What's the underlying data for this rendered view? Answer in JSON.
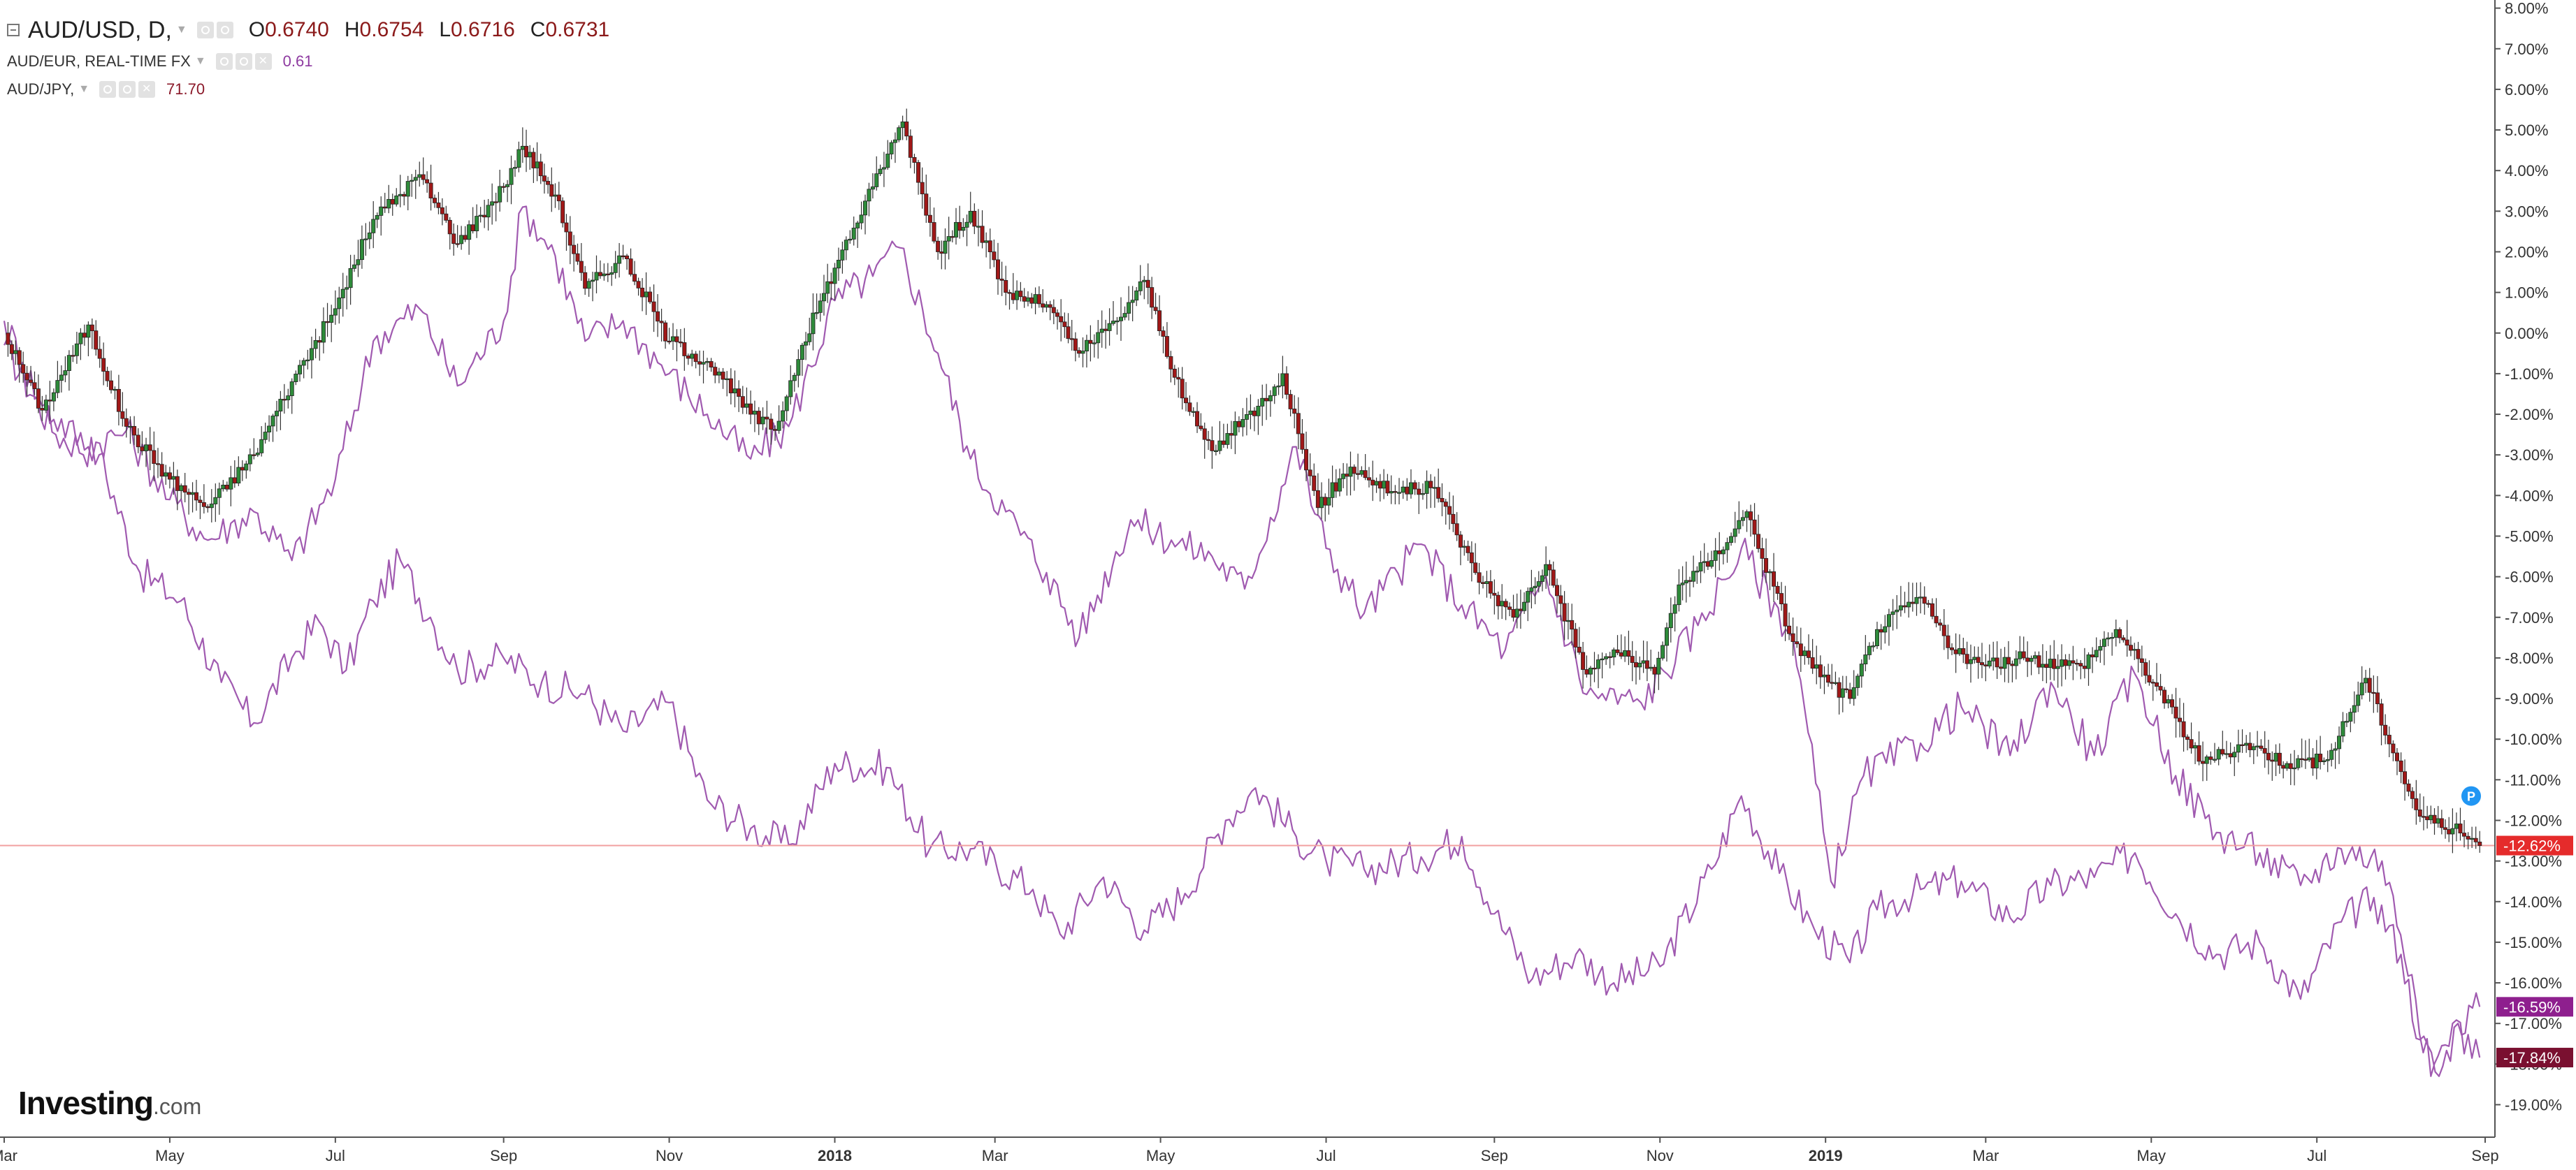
{
  "legend": {
    "main": {
      "symbol": "AUD/USD, D,",
      "open_label": "O",
      "open": "0.6740",
      "high_label": "H",
      "high": "0.6754",
      "low_label": "L",
      "low": "0.6716",
      "close_label": "C",
      "close": "0.6731"
    },
    "overlays": [
      {
        "symbol": "AUD/EUR, REAL-TIME FX",
        "value": "0.61",
        "color": "#8e3aa0"
      },
      {
        "symbol": "AUD/JPY,",
        "value": "71.70",
        "color": "#8b1a2a"
      }
    ]
  },
  "logo": {
    "brand": "Investing",
    "suffix": ".com"
  },
  "price_badges": [
    {
      "label": "-12.62%",
      "value": -12.62,
      "color": "#e52b2b"
    },
    {
      "label": "-16.59%",
      "value": -16.59,
      "color": "#8e1f8e"
    },
    {
      "label": "-17.84%",
      "value": -17.84,
      "color": "#7a1030"
    }
  ],
  "marker": {
    "label": "P",
    "color": "#2196f3"
  },
  "colors": {
    "up": "#2e8b3a",
    "down": "#a01818",
    "wick": "#333333",
    "aud_eur": "#a05ab0",
    "aud_jpy": "#a05ab0",
    "grid": "#eeeeee",
    "hline": "#f2a0a0"
  },
  "chart_data": {
    "type": "line",
    "title": "AUD/USD, D,",
    "y_axis": {
      "unit": "%",
      "side": "right",
      "min": -19.8,
      "max": 8.2,
      "ticks": [
        8,
        7,
        6,
        5,
        4,
        3,
        2,
        1,
        0,
        -1,
        -2,
        -3,
        -4,
        -5,
        -6,
        -7,
        -8,
        -9,
        -10,
        -11,
        -12,
        -13,
        -14,
        -15,
        -16,
        -17,
        -18,
        -19
      ],
      "tick_labels": [
        "8.00%",
        "7.00%",
        "6.00%",
        "5.00%",
        "4.00%",
        "3.00%",
        "2.00%",
        "1.00%",
        "0.00%",
        "-1.00%",
        "-2.00%",
        "-3.00%",
        "-4.00%",
        "-5.00%",
        "-6.00%",
        "-7.00%",
        "-8.00%",
        "-9.00%",
        "-10.00%",
        "-11.00%",
        "-12.00%",
        "-13.00%",
        "-14.00%",
        "-15.00%",
        "-16.00%",
        "-17.00%",
        "-18.00%",
        "-19.00%"
      ]
    },
    "x_axis": {
      "start": "2017-03-01",
      "end": "2019-09-01",
      "ticks": [
        {
          "date": "2017-03-01",
          "label": "Mar",
          "bold": false
        },
        {
          "date": "2017-05-01",
          "label": "May",
          "bold": false
        },
        {
          "date": "2017-07-01",
          "label": "Jul",
          "bold": false
        },
        {
          "date": "2017-09-01",
          "label": "Sep",
          "bold": false
        },
        {
          "date": "2017-11-01",
          "label": "Nov",
          "bold": false
        },
        {
          "date": "2018-01-01",
          "label": "2018",
          "bold": true
        },
        {
          "date": "2018-03-01",
          "label": "Mar",
          "bold": false
        },
        {
          "date": "2018-05-01",
          "label": "May",
          "bold": false
        },
        {
          "date": "2018-07-01",
          "label": "Jul",
          "bold": false
        },
        {
          "date": "2018-09-01",
          "label": "Sep",
          "bold": false
        },
        {
          "date": "2018-11-01",
          "label": "Nov",
          "bold": false
        },
        {
          "date": "2019-01-01",
          "label": "2019",
          "bold": true
        },
        {
          "date": "2019-03-01",
          "label": "Mar",
          "bold": false
        },
        {
          "date": "2019-05-01",
          "label": "May",
          "bold": false
        },
        {
          "date": "2019-07-01",
          "label": "Jul",
          "bold": false
        },
        {
          "date": "2019-09-01",
          "label": "Sep",
          "bold": false
        }
      ]
    },
    "series": [
      {
        "name": "AUD/USD, D,",
        "kind": "candlestick",
        "last": -12.62,
        "points": [
          [
            "2017-03-01",
            0
          ],
          [
            "2017-03-15",
            -1.9
          ],
          [
            "2017-04-01",
            0.2
          ],
          [
            "2017-04-15",
            -2.3
          ],
          [
            "2017-05-01",
            -3.6
          ],
          [
            "2017-05-15",
            -4.3
          ],
          [
            "2017-06-01",
            -3.0
          ],
          [
            "2017-06-15",
            -1.2
          ],
          [
            "2017-07-01",
            0.6
          ],
          [
            "2017-07-15",
            2.8
          ],
          [
            "2017-08-01",
            3.9
          ],
          [
            "2017-08-15",
            2.2
          ],
          [
            "2017-09-01",
            3.6
          ],
          [
            "2017-09-08",
            4.6
          ],
          [
            "2017-09-20",
            3.4
          ],
          [
            "2017-10-01",
            1.1
          ],
          [
            "2017-10-15",
            1.9
          ],
          [
            "2017-11-01",
            -0.2
          ],
          [
            "2017-11-15",
            -0.7
          ],
          [
            "2017-12-01",
            -2.0
          ],
          [
            "2017-12-10",
            -2.4
          ],
          [
            "2017-12-20",
            -0.3
          ],
          [
            "2018-01-01",
            1.6
          ],
          [
            "2018-01-15",
            3.6
          ],
          [
            "2018-01-26",
            5.2
          ],
          [
            "2018-02-08",
            2.0
          ],
          [
            "2018-02-20",
            3.0
          ],
          [
            "2018-03-05",
            1.0
          ],
          [
            "2018-03-20",
            0.7
          ],
          [
            "2018-04-01",
            -0.5
          ],
          [
            "2018-04-15",
            0.3
          ],
          [
            "2018-04-25",
            1.3
          ],
          [
            "2018-05-09",
            -1.6
          ],
          [
            "2018-05-20",
            -2.9
          ],
          [
            "2018-06-06",
            -1.8
          ],
          [
            "2018-06-15",
            -1.0
          ],
          [
            "2018-06-28",
            -4.3
          ],
          [
            "2018-07-10",
            -3.3
          ],
          [
            "2018-07-25",
            -3.9
          ],
          [
            "2018-08-10",
            -3.8
          ],
          [
            "2018-08-25",
            -5.9
          ],
          [
            "2018-09-08",
            -7.0
          ],
          [
            "2018-09-20",
            -5.7
          ],
          [
            "2018-10-05",
            -8.4
          ],
          [
            "2018-10-15",
            -7.8
          ],
          [
            "2018-10-30",
            -8.4
          ],
          [
            "2018-11-08",
            -6.2
          ],
          [
            "2018-11-20",
            -5.6
          ],
          [
            "2018-12-03",
            -4.4
          ],
          [
            "2018-12-20",
            -7.6
          ],
          [
            "2019-01-02",
            -8.6
          ],
          [
            "2019-01-10",
            -9.0
          ],
          [
            "2019-01-20",
            -7.3
          ],
          [
            "2019-02-05",
            -6.5
          ],
          [
            "2019-02-18",
            -7.9
          ],
          [
            "2019-03-01",
            -8.2
          ],
          [
            "2019-03-15",
            -8.0
          ],
          [
            "2019-04-05",
            -8.2
          ],
          [
            "2019-04-18",
            -7.3
          ],
          [
            "2019-05-03",
            -8.7
          ],
          [
            "2019-05-20",
            -10.6
          ],
          [
            "2019-06-05",
            -10.1
          ],
          [
            "2019-06-20",
            -10.6
          ],
          [
            "2019-07-05",
            -10.5
          ],
          [
            "2019-07-19",
            -8.5
          ],
          [
            "2019-08-01",
            -10.8
          ],
          [
            "2019-08-08",
            -11.9
          ],
          [
            "2019-08-20",
            -12.2
          ],
          [
            "2019-08-30",
            -12.62
          ]
        ]
      },
      {
        "name": "AUD/EUR, REAL-TIME FX",
        "kind": "line",
        "last": -16.59,
        "points": [
          [
            "2017-03-01",
            -0.3
          ],
          [
            "2017-03-20",
            -2.5
          ],
          [
            "2017-04-05",
            -3.0
          ],
          [
            "2017-04-20",
            -5.9
          ],
          [
            "2017-05-05",
            -6.6
          ],
          [
            "2017-05-20",
            -8.6
          ],
          [
            "2017-06-01",
            -9.6
          ],
          [
            "2017-06-15",
            -8.0
          ],
          [
            "2017-06-25",
            -7.1
          ],
          [
            "2017-07-05",
            -8.3
          ],
          [
            "2017-07-15",
            -6.6
          ],
          [
            "2017-07-25",
            -5.6
          ],
          [
            "2017-08-05",
            -7.0
          ],
          [
            "2017-08-15",
            -8.3
          ],
          [
            "2017-09-01",
            -8.0
          ],
          [
            "2017-09-15",
            -8.6
          ],
          [
            "2017-10-01",
            -8.9
          ],
          [
            "2017-10-15",
            -9.8
          ],
          [
            "2017-11-01",
            -9.1
          ],
          [
            "2017-11-15",
            -11.5
          ],
          [
            "2017-12-01",
            -12.2
          ],
          [
            "2017-12-15",
            -12.6
          ],
          [
            "2018-01-01",
            -10.6
          ],
          [
            "2018-01-20",
            -10.7
          ],
          [
            "2018-02-05",
            -12.7
          ],
          [
            "2018-02-20",
            -12.7
          ],
          [
            "2018-03-15",
            -13.7
          ],
          [
            "2018-03-25",
            -14.8
          ],
          [
            "2018-04-10",
            -13.4
          ],
          [
            "2018-04-25",
            -14.7
          ],
          [
            "2018-05-10",
            -13.8
          ],
          [
            "2018-05-25",
            -12.0
          ],
          [
            "2018-06-05",
            -11.2
          ],
          [
            "2018-06-20",
            -12.4
          ],
          [
            "2018-07-01",
            -13.0
          ],
          [
            "2018-07-15",
            -13.2
          ],
          [
            "2018-08-05",
            -12.9
          ],
          [
            "2018-08-20",
            -12.4
          ],
          [
            "2018-09-01",
            -14.3
          ],
          [
            "2018-09-15",
            -15.9
          ],
          [
            "2018-10-01",
            -15.3
          ],
          [
            "2018-10-15",
            -16.0
          ],
          [
            "2018-11-01",
            -15.6
          ],
          [
            "2018-11-20",
            -13.2
          ],
          [
            "2018-12-01",
            -11.4
          ],
          [
            "2018-12-15",
            -13.3
          ],
          [
            "2018-12-28",
            -14.7
          ],
          [
            "2019-01-10",
            -15.5
          ],
          [
            "2019-01-20",
            -14.2
          ],
          [
            "2019-02-05",
            -13.7
          ],
          [
            "2019-02-20",
            -13.5
          ],
          [
            "2019-03-10",
            -14.4
          ],
          [
            "2019-03-25",
            -13.6
          ],
          [
            "2019-04-10",
            -13.4
          ],
          [
            "2019-04-25",
            -12.8
          ],
          [
            "2019-05-10",
            -14.3
          ],
          [
            "2019-05-25",
            -15.3
          ],
          [
            "2019-06-10",
            -15.0
          ],
          [
            "2019-06-25",
            -16.4
          ],
          [
            "2019-07-10",
            -14.5
          ],
          [
            "2019-07-22",
            -13.9
          ],
          [
            "2019-08-01",
            -15.3
          ],
          [
            "2019-08-08",
            -17.4
          ],
          [
            "2019-08-15",
            -18.3
          ],
          [
            "2019-08-22",
            -17.0
          ],
          [
            "2019-08-30",
            -16.59
          ]
        ]
      },
      {
        "name": "AUD/JPY,",
        "kind": "line",
        "last": -17.84,
        "points": [
          [
            "2017-03-01",
            0.3
          ],
          [
            "2017-03-15",
            -1.8
          ],
          [
            "2017-04-01",
            -2.8
          ],
          [
            "2017-04-15",
            -2.4
          ],
          [
            "2017-05-01",
            -4.1
          ],
          [
            "2017-05-15",
            -5.1
          ],
          [
            "2017-06-01",
            -4.4
          ],
          [
            "2017-06-15",
            -5.6
          ],
          [
            "2017-07-01",
            -3.6
          ],
          [
            "2017-07-15",
            -0.2
          ],
          [
            "2017-08-01",
            0.6
          ],
          [
            "2017-08-15",
            -1.3
          ],
          [
            "2017-09-01",
            0.3
          ],
          [
            "2017-09-08",
            3.1
          ],
          [
            "2017-09-20",
            1.9
          ],
          [
            "2017-10-01",
            -0.2
          ],
          [
            "2017-10-15",
            0.3
          ],
          [
            "2017-11-01",
            -1.0
          ],
          [
            "2017-11-15",
            -2.0
          ],
          [
            "2017-12-01",
            -3.1
          ],
          [
            "2017-12-15",
            -2.3
          ],
          [
            "2018-01-01",
            0.8
          ],
          [
            "2018-01-15",
            1.4
          ],
          [
            "2018-01-25",
            2.1
          ],
          [
            "2018-02-08",
            -0.5
          ],
          [
            "2018-02-20",
            -3.1
          ],
          [
            "2018-03-05",
            -4.4
          ],
          [
            "2018-03-20",
            -5.9
          ],
          [
            "2018-04-01",
            -7.5
          ],
          [
            "2018-04-20",
            -4.6
          ],
          [
            "2018-05-05",
            -5.1
          ],
          [
            "2018-05-20",
            -5.5
          ],
          [
            "2018-06-01",
            -6.3
          ],
          [
            "2018-06-20",
            -2.8
          ],
          [
            "2018-07-01",
            -5.3
          ],
          [
            "2018-07-15",
            -6.9
          ],
          [
            "2018-08-05",
            -5.2
          ],
          [
            "2018-08-20",
            -6.7
          ],
          [
            "2018-09-05",
            -7.8
          ],
          [
            "2018-09-20",
            -6.0
          ],
          [
            "2018-10-05",
            -8.9
          ],
          [
            "2018-10-25",
            -9.1
          ],
          [
            "2018-11-15",
            -7.2
          ],
          [
            "2018-12-01",
            -5.3
          ],
          [
            "2018-12-20",
            -7.5
          ],
          [
            "2019-01-03",
            -13.5
          ],
          [
            "2019-01-15",
            -10.9
          ],
          [
            "2019-02-05",
            -10.1
          ],
          [
            "2019-02-20",
            -9.2
          ],
          [
            "2019-03-10",
            -10.4
          ],
          [
            "2019-03-25",
            -8.6
          ],
          [
            "2019-04-10",
            -10.4
          ],
          [
            "2019-04-25",
            -8.4
          ],
          [
            "2019-05-10",
            -10.9
          ],
          [
            "2019-05-25",
            -12.3
          ],
          [
            "2019-06-10",
            -12.8
          ],
          [
            "2019-06-25",
            -13.6
          ],
          [
            "2019-07-10",
            -12.7
          ],
          [
            "2019-07-25",
            -13.0
          ],
          [
            "2019-08-05",
            -15.8
          ],
          [
            "2019-08-12",
            -18.3
          ],
          [
            "2019-08-20",
            -17.0
          ],
          [
            "2019-08-30",
            -17.84
          ]
        ]
      }
    ]
  }
}
